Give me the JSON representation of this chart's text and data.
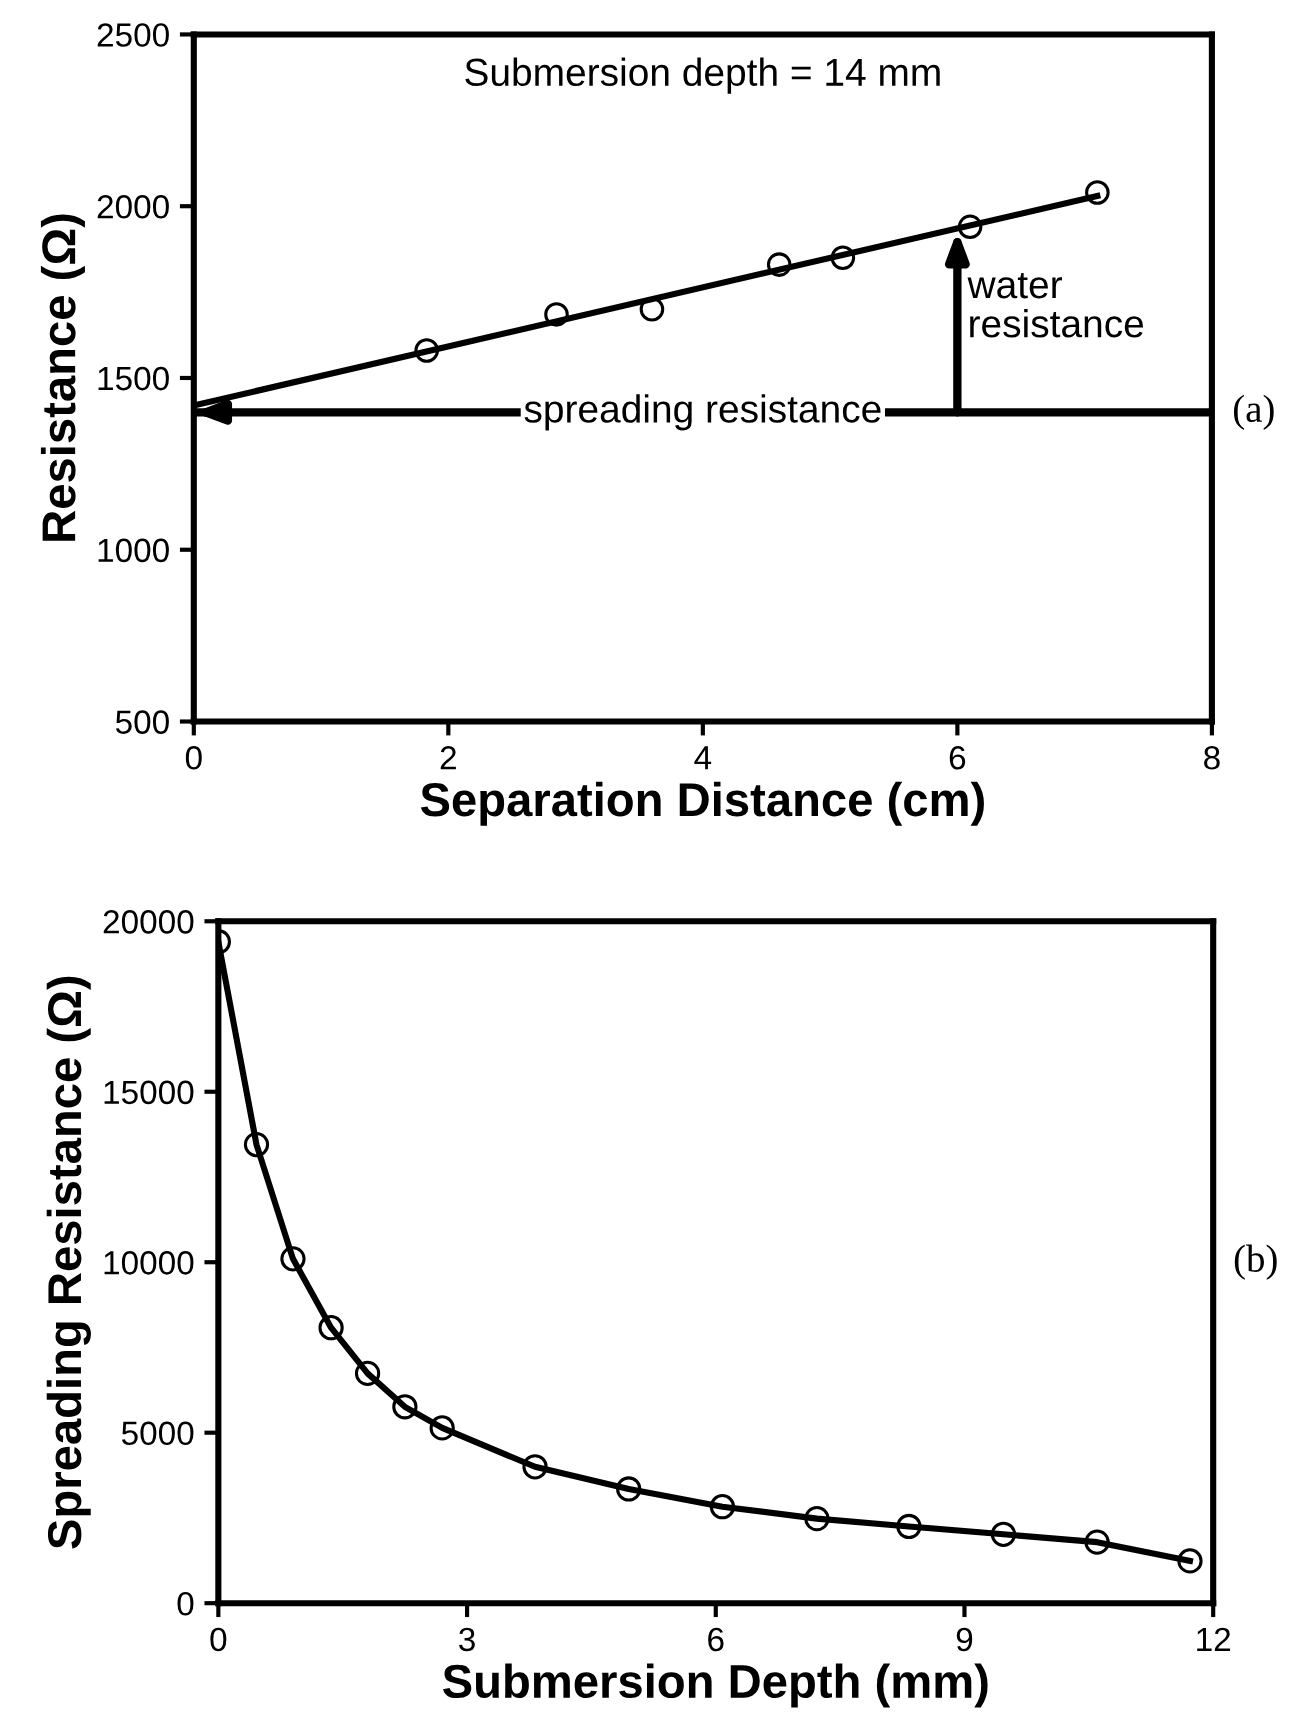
{
  "chart_data": [
    {
      "type": "scatter",
      "title": "Submersion depth = 14 mm",
      "xlabel": "Separation Distance (cm)",
      "ylabel": "Resistance (Ω)",
      "xlim": [
        0,
        8
      ],
      "xticks": [
        0,
        2,
        4,
        6,
        8
      ],
      "ylim": [
        500,
        2500
      ],
      "yticks": [
        500,
        1000,
        1500,
        2000,
        2500
      ],
      "marker": "circle",
      "grid": false,
      "series": [
        {
          "type": "scatter",
          "color": "#000000",
          "x": [
            1.83,
            2.85,
            3.6,
            4.6,
            5.1,
            6.1,
            7.1
          ],
          "values": [
            1580,
            1685,
            1700,
            1830,
            1850,
            1940,
            2040
          ]
        },
        {
          "type": "line",
          "color": "#000000",
          "marker": "none",
          "x": [
            0,
            7.1
          ],
          "values": [
            1420,
            2030
          ]
        }
      ],
      "ref_lines": [
        {
          "axis": "y",
          "value": 1400,
          "label": "spreading resistance",
          "color": "#000000"
        }
      ],
      "annotations": [
        {
          "text": "water\nresistance",
          "x": 6,
          "y": 1930
        },
        "(a)"
      ]
    },
    {
      "type": "line",
      "xlabel": "Submersion Depth (mm)",
      "ylabel": "Spreading Resistance (Ω)",
      "xlim": [
        0,
        12
      ],
      "xticks": [
        0,
        3,
        6,
        9,
        12
      ],
      "ylim": [
        0,
        20000
      ],
      "yticks": [
        0,
        5000,
        10000,
        15000,
        20000
      ],
      "marker": "circle",
      "line_style": "solid",
      "grid": false,
      "series": [
        {
          "color": "#000000",
          "x": [
            0,
            0.46,
            0.9,
            1.36,
            1.8,
            2.25,
            2.7,
            3.82,
            4.95,
            6.08,
            7.22,
            8.33,
            9.47,
            10.6,
            11.72
          ],
          "values": [
            19400,
            13450,
            10100,
            8080,
            6740,
            5760,
            5140,
            4000,
            3350,
            2830,
            2480,
            2250,
            2020,
            1790,
            1240
          ]
        }
      ],
      "annotations": [
        "(b)"
      ]
    }
  ]
}
